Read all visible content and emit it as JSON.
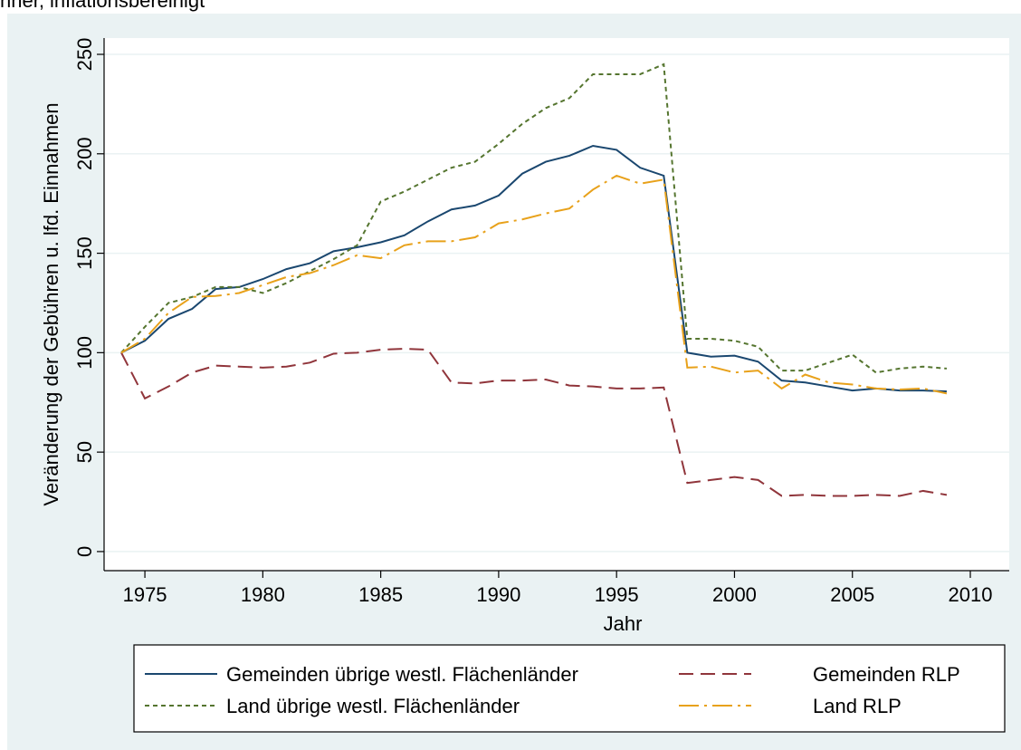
{
  "caption": "nner, inflationsbereinigt",
  "chart_data": {
    "type": "line",
    "xlabel": "Jahr",
    "ylabel": "Veränderung der Gebühren u. lfd. Einnahmen",
    "x": [
      1974,
      1975,
      1976,
      1977,
      1978,
      1979,
      1980,
      1981,
      1982,
      1983,
      1984,
      1985,
      1986,
      1987,
      1988,
      1989,
      1990,
      1991,
      1992,
      1993,
      1994,
      1995,
      1996,
      1997,
      1998,
      1999,
      2000,
      2001,
      2002,
      2003,
      2004,
      2005,
      2006,
      2007,
      2008,
      2009
    ],
    "series": [
      {
        "name": "Gemeinden übrige westl. Flächenländer",
        "color": "#1a476f",
        "dash": "none",
        "values": [
          100,
          106,
          117,
          122,
          132,
          133,
          137,
          142,
          145,
          151,
          153,
          155.5,
          159,
          166,
          172,
          174,
          179,
          190,
          196,
          199,
          204,
          202,
          193,
          189,
          100,
          98,
          98.5,
          95.5,
          86,
          85,
          83,
          81,
          82,
          81,
          81,
          80.5
        ]
      },
      {
        "name": "Gemeinden RLP",
        "color": "#90353b",
        "dash": "16 8",
        "values": [
          100,
          77,
          83,
          90,
          93.5,
          93,
          92.5,
          93,
          95,
          99.5,
          100,
          101.5,
          102,
          101.5,
          85,
          84.5,
          86,
          86,
          86.5,
          83.5,
          83,
          82,
          82,
          82.5,
          34.5,
          36,
          37.5,
          36,
          28,
          28.5,
          28,
          28,
          28.5,
          28,
          30.5,
          28.5
        ]
      },
      {
        "name": "Land übrige westl. Flächenländer",
        "color": "#55752f",
        "dash": "5 4",
        "values": [
          100,
          113,
          125,
          128,
          133,
          133,
          130,
          135,
          141,
          147,
          154,
          176,
          181,
          187,
          193,
          196,
          205,
          215,
          223,
          228,
          240,
          240,
          240,
          245,
          107,
          107,
          106,
          103,
          91,
          91,
          95,
          99,
          90,
          92,
          93,
          92
        ]
      },
      {
        "name": "Land RLP",
        "color": "#e8a11a",
        "dash": "22 6 3 6",
        "values": [
          100,
          107,
          120,
          128,
          128.5,
          130,
          134,
          138,
          140,
          144,
          149,
          147.5,
          154,
          156,
          156,
          158,
          165,
          167,
          170,
          172.5,
          182,
          189,
          185,
          187,
          92.5,
          93,
          90,
          91,
          82,
          89,
          85,
          84,
          82,
          81.5,
          82,
          79.5
        ]
      }
    ],
    "xlim": [
      1973.27,
      2011.65
    ],
    "ylim": [
      -9.6,
      258.2
    ],
    "xticks": [
      1975,
      1980,
      1985,
      1990,
      1995,
      2000,
      2005,
      2010
    ],
    "yticks": [
      0,
      50,
      100,
      150,
      200,
      250
    ],
    "grid": true,
    "legend": "bottom"
  }
}
